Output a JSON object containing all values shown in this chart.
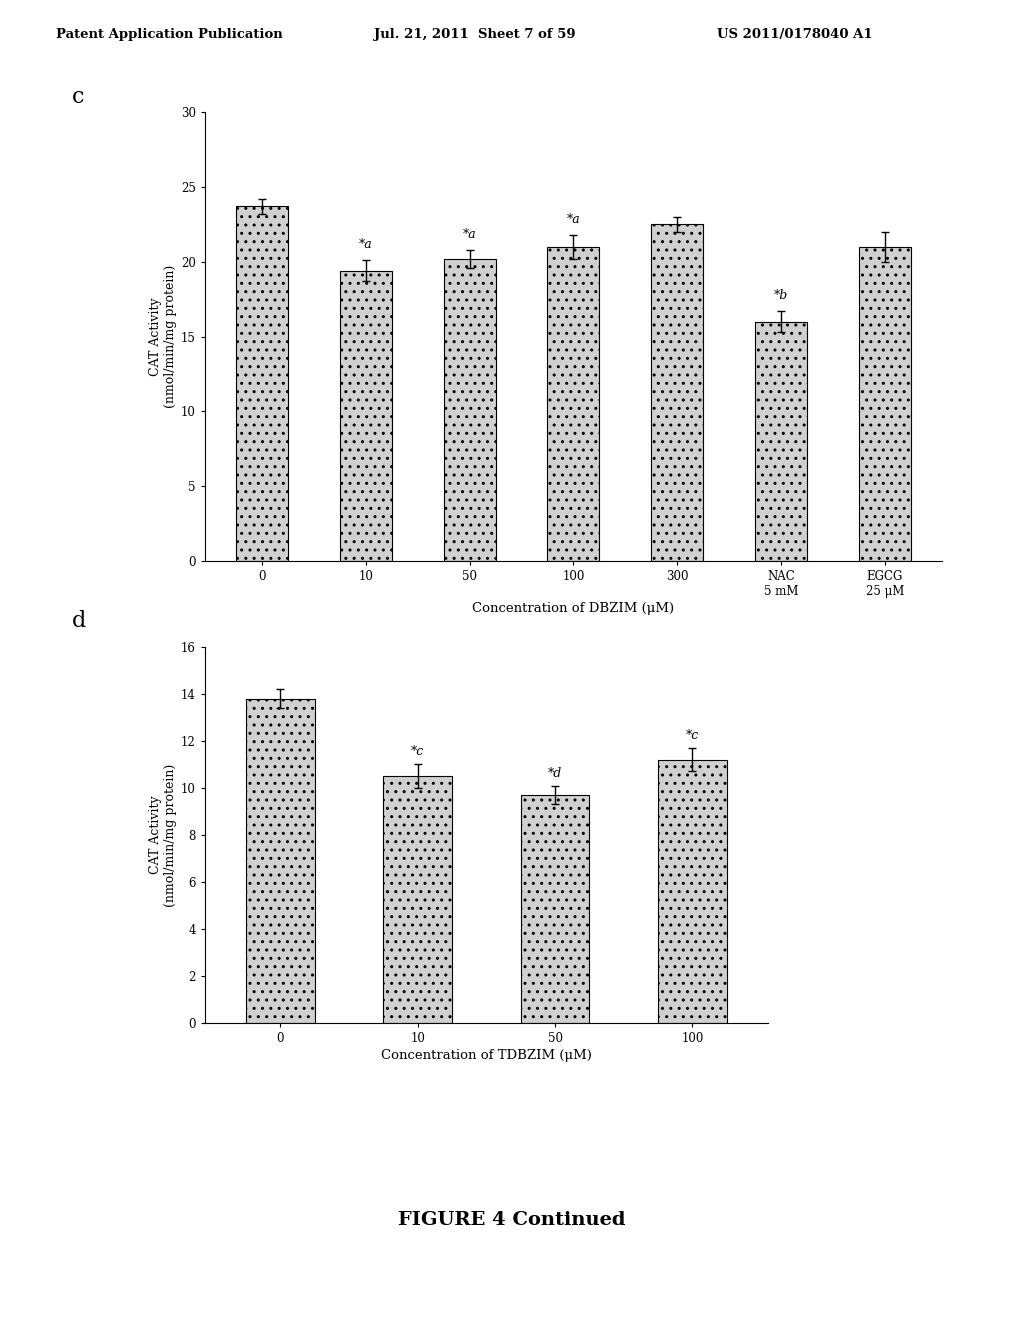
{
  "header_left": "Patent Application Publication",
  "header_mid": "Jul. 21, 2011  Sheet 7 of 59",
  "header_right": "US 2011/0178040 A1",
  "figure_label": "FIGURE 4 Continued",
  "chart_c": {
    "panel_label": "c",
    "categories": [
      "0",
      "10",
      "50",
      "100",
      "300",
      "NAC\n5 mM",
      "EGCG\n25 μM"
    ],
    "values": [
      23.7,
      19.4,
      20.2,
      21.0,
      22.5,
      16.0,
      21.0
    ],
    "errors": [
      0.5,
      0.7,
      0.6,
      0.8,
      0.5,
      0.7,
      1.0
    ],
    "annotations": [
      "",
      "*a",
      "*a",
      "*a",
      "",
      "*b",
      ""
    ],
    "xlabel": "Concentration of DBZIM (μM)",
    "ylabel": "CAT Activity\n(nmol/min/mg protein)",
    "ylim": [
      0,
      30
    ],
    "yticks": [
      0,
      5,
      10,
      15,
      20,
      25,
      30
    ]
  },
  "chart_d": {
    "panel_label": "d",
    "categories": [
      "0",
      "10",
      "50",
      "100"
    ],
    "values": [
      13.8,
      10.5,
      9.7,
      11.2
    ],
    "errors": [
      0.4,
      0.5,
      0.4,
      0.5
    ],
    "annotations": [
      "",
      "*c",
      "*d",
      "*c"
    ],
    "xlabel": "Concentration of TDBZIM (μM)",
    "ylabel": "CAT Activity\n(nmol/min/mg protein)",
    "ylim": [
      0,
      16
    ],
    "yticks": [
      0,
      2,
      4,
      6,
      8,
      10,
      12,
      14,
      16
    ]
  },
  "bar_color": "#d0d0d0",
  "bar_edgecolor": "#000000",
  "background_color": "#ffffff"
}
